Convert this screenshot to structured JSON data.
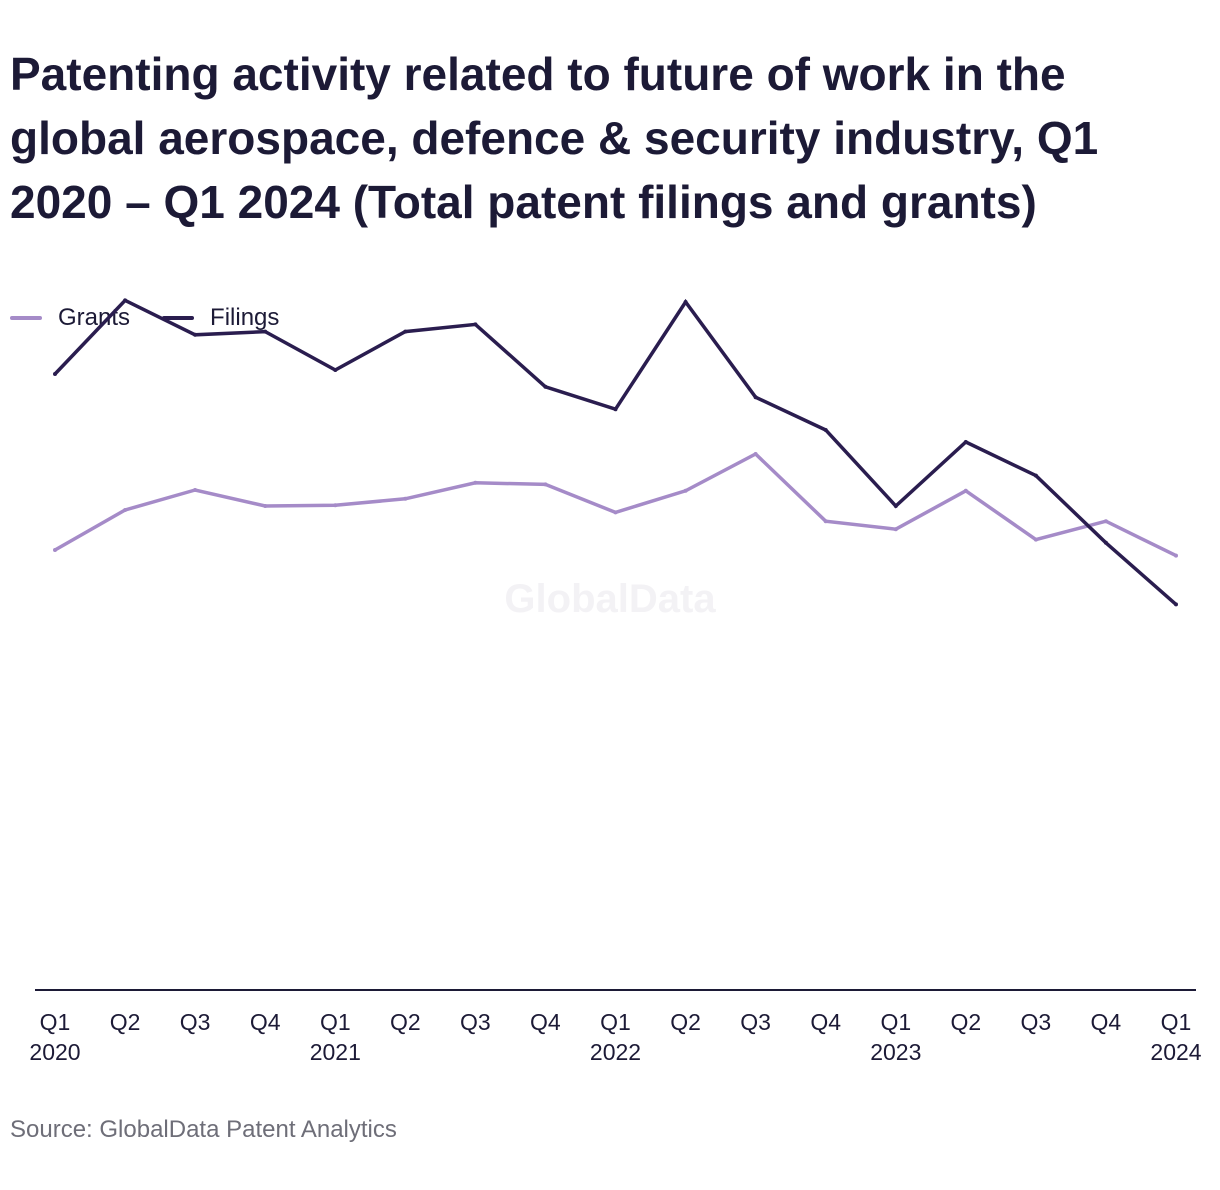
{
  "title": "Patenting activity related to future of work in the global aerospace, defence & security industry, Q1 2020 – Q1 2024 (Total patent filings and grants)",
  "source": "Source: GlobalData Patent Analytics",
  "watermark": "GlobalData",
  "colors": {
    "grants": "#a58bc8",
    "filings": "#2a1d4f",
    "axis": "#1c1a36",
    "text": "#1c1a36",
    "source_text": "#6e6e78"
  },
  "chart_data": {
    "type": "line",
    "title": "Patenting activity related to future of work in the global aerospace, defence & security industry, Q1 2020 – Q1 2024 (Total patent filings and grants)",
    "x_tick_labels": [
      [
        "Q1",
        "2020"
      ],
      [
        "Q2",
        ""
      ],
      [
        "Q3",
        ""
      ],
      [
        "Q4",
        ""
      ],
      [
        "Q1",
        "2021"
      ],
      [
        "Q2",
        ""
      ],
      [
        "Q3",
        ""
      ],
      [
        "Q4",
        ""
      ],
      [
        "Q1",
        "2022"
      ],
      [
        "Q2",
        ""
      ],
      [
        "Q3",
        ""
      ],
      [
        "Q4",
        ""
      ],
      [
        "Q1",
        "2023"
      ],
      [
        "Q2",
        ""
      ],
      [
        "Q3",
        ""
      ],
      [
        "Q4",
        ""
      ],
      [
        "Q1",
        "2024"
      ]
    ],
    "categories": [
      "Q1 2020",
      "Q2 2020",
      "Q3 2020",
      "Q4 2020",
      "Q1 2021",
      "Q2 2021",
      "Q3 2021",
      "Q4 2021",
      "Q1 2022",
      "Q2 2022",
      "Q3 2022",
      "Q4 2022",
      "Q1 2023",
      "Q2 2023",
      "Q3 2023",
      "Q4 2023",
      "Q1 2024"
    ],
    "series": [
      {
        "name": "Grants",
        "values": [
          550,
          600,
          625,
          605,
          606,
          614,
          634,
          632,
          597,
          624,
          670,
          586,
          576,
          624,
          563,
          586,
          543
        ]
      },
      {
        "name": "Filings",
        "values": [
          770,
          862,
          819,
          823,
          775,
          823,
          832,
          754,
          726,
          860,
          741,
          700,
          605,
          685,
          643,
          559,
          482
        ]
      }
    ],
    "ylim": [
      0,
      1150
    ],
    "grid": false,
    "legend_position": "top-left",
    "xlabel": "",
    "ylabel": ""
  }
}
